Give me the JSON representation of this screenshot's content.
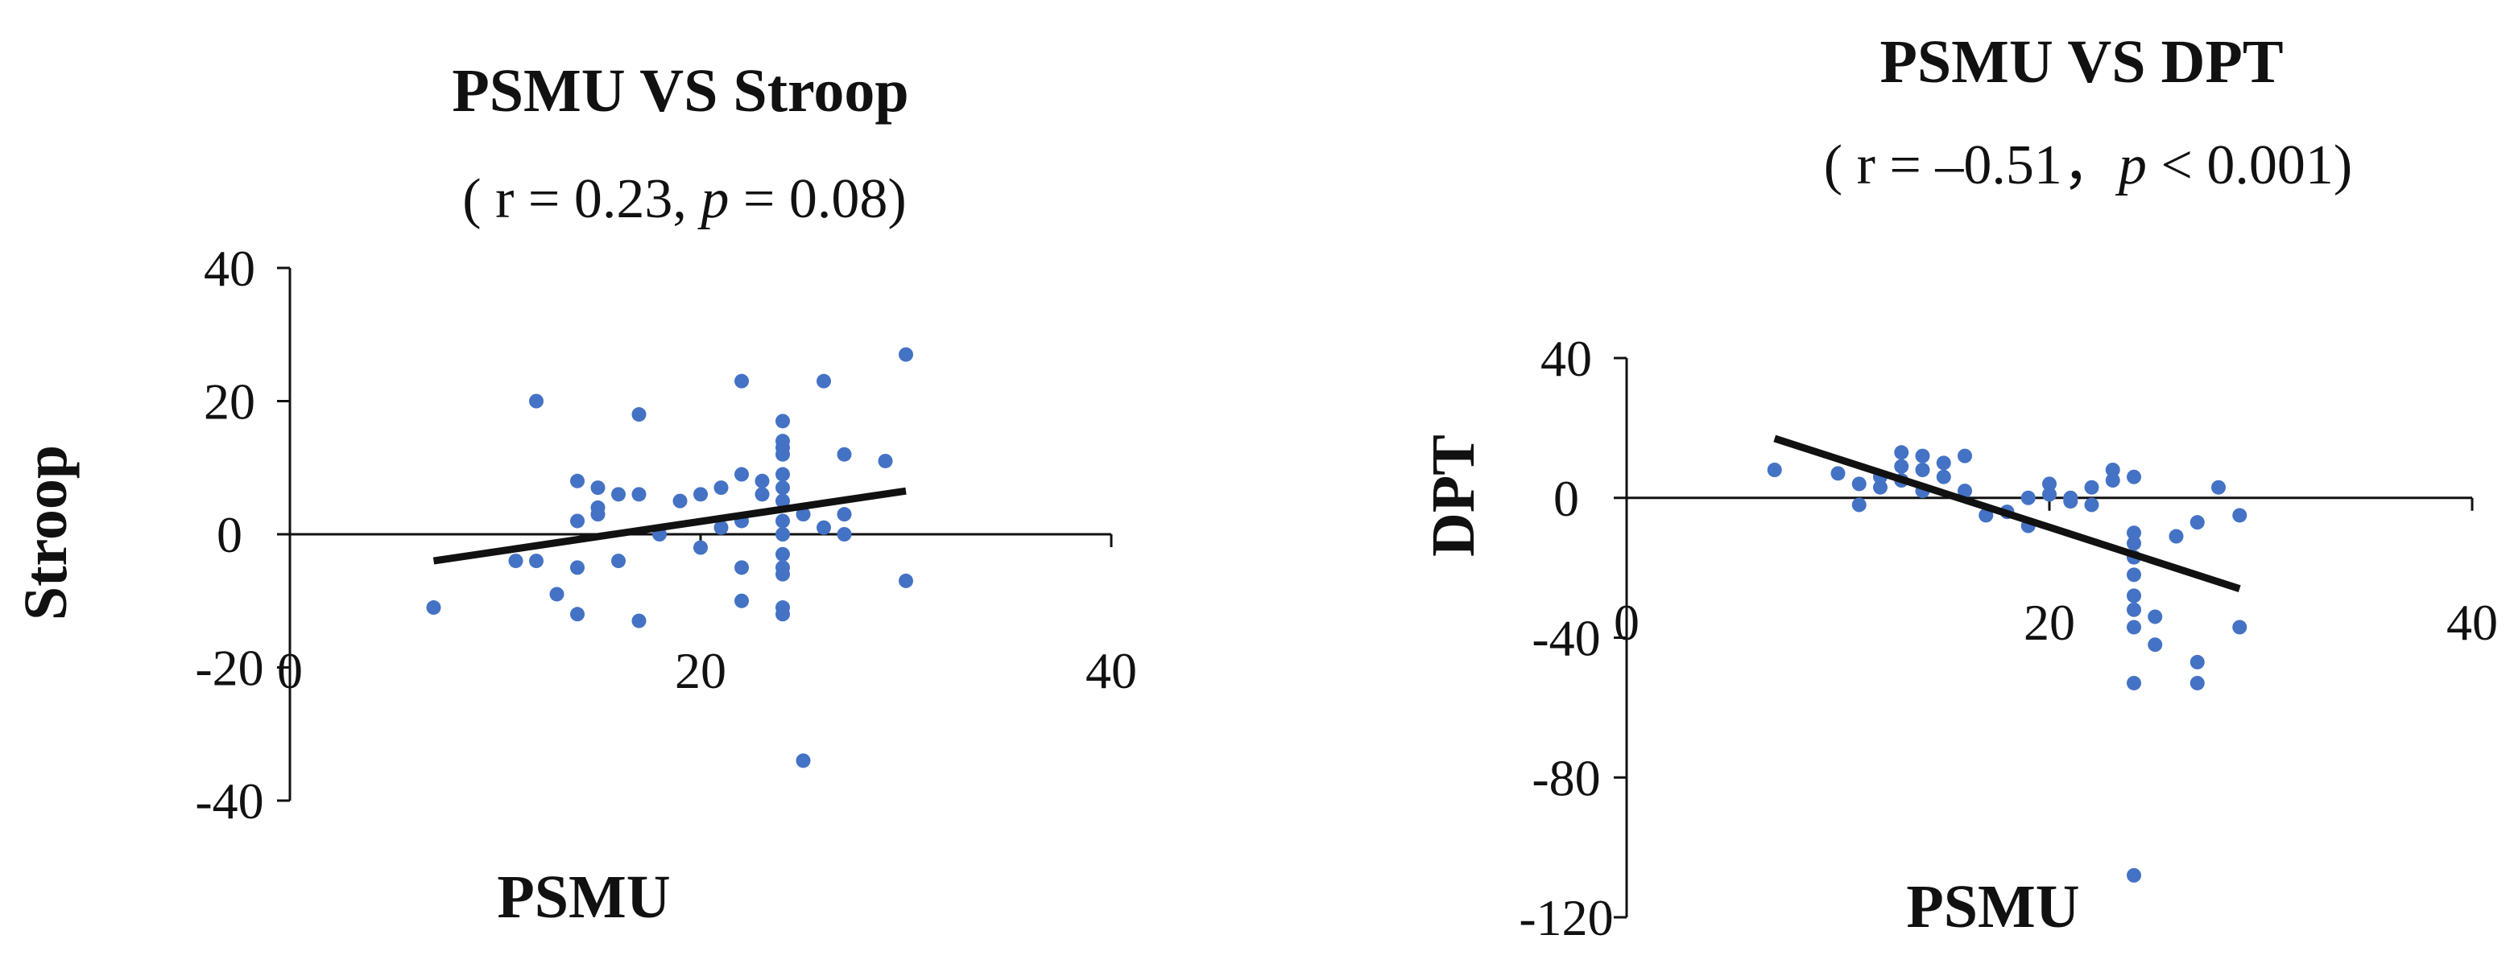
{
  "chart_data": [
    {
      "type": "scatter",
      "title": "PSMU VS Stroop",
      "subtitle": {
        "prefix": "( r = 0.23, ",
        "p": "p",
        "suffix": " = 0.08)"
      },
      "xlabel": "PSMU",
      "ylabel": "Stroop",
      "xlim": [
        0,
        40
      ],
      "ylim": [
        -40,
        40
      ],
      "xticks": [
        0,
        20,
        40
      ],
      "yticks": [
        40,
        20,
        0,
        -20,
        -40
      ],
      "grid": false,
      "series": [
        {
          "x": [
            7,
            11,
            12,
            12,
            13,
            14,
            14,
            14,
            14,
            15,
            15,
            15,
            16,
            16,
            17,
            17,
            17,
            18,
            19,
            20,
            20,
            21,
            21,
            22,
            22,
            22,
            22,
            22,
            23,
            23,
            24,
            24,
            24,
            24,
            24,
            24,
            24,
            24,
            24,
            24,
            24,
            24,
            24,
            24,
            25,
            25,
            26,
            26,
            27,
            27,
            27,
            29,
            30,
            30
          ],
          "y": [
            -11,
            -4,
            20,
            -4,
            -9,
            8,
            2,
            -5,
            -12,
            7,
            4,
            3,
            -4,
            6,
            18,
            6,
            -13,
            0,
            5,
            6,
            -2,
            7,
            1,
            23,
            9,
            -5,
            -10,
            2,
            8,
            6,
            17,
            14,
            13,
            12,
            9,
            5,
            2,
            0,
            -3,
            -5,
            -6,
            -11,
            -12,
            7,
            3,
            -34,
            23,
            1,
            12,
            3,
            0,
            11,
            27,
            -7
          ]
        }
      ],
      "trendline": {
        "x": [
          7,
          30
        ],
        "y": [
          -4,
          6.5
        ]
      }
    },
    {
      "type": "scatter",
      "title": "PSMU VS DPT",
      "subtitle": {
        "prefix": "( r = –0.51，",
        "p": "p",
        "suffix": " < 0.001)"
      },
      "xlabel": "PSMU",
      "ylabel": "DPT",
      "xlim": [
        0,
        40
      ],
      "ylim": [
        -120,
        40
      ],
      "xticks": [
        0,
        20,
        40
      ],
      "yticks": [
        40,
        0,
        -40,
        -80,
        -120
      ],
      "grid": false,
      "series": [
        {
          "x": [
            7,
            10,
            11,
            11,
            12,
            12,
            13,
            13,
            13,
            14,
            14,
            14,
            15,
            15,
            16,
            16,
            17,
            18,
            19,
            19,
            20,
            20,
            21,
            21,
            22,
            22,
            23,
            23,
            24,
            24,
            24,
            24,
            24,
            24,
            24,
            24,
            24,
            24,
            25,
            25,
            26,
            27,
            27,
            27,
            28,
            29,
            29
          ],
          "y": [
            8,
            7,
            4,
            -2,
            6,
            3,
            13,
            9,
            5,
            12,
            8,
            2,
            10,
            6,
            12,
            2,
            -5,
            -4,
            -8,
            0,
            1,
            4,
            0,
            -1,
            -2,
            3,
            8,
            5,
            6,
            -10,
            -13,
            -17,
            -22,
            -28,
            -32,
            -37,
            -53,
            -108,
            -34,
            -42,
            -11,
            -7,
            -47,
            -53,
            3,
            -5,
            -37
          ]
        }
      ],
      "trendline": {
        "x": [
          7,
          29
        ],
        "y": [
          17,
          -26
        ]
      }
    }
  ]
}
